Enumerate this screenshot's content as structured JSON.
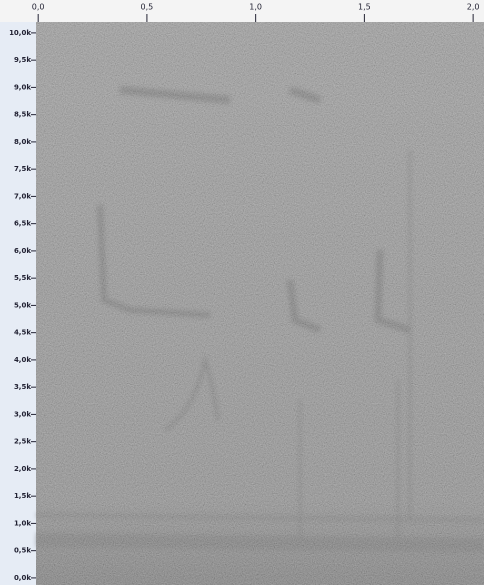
{
  "chart_data": {
    "type": "spectrogram",
    "xlim": [
      -0.01,
      2.05
    ],
    "xticks": [
      {
        "value": 0,
        "label": "0,0"
      },
      {
        "value": 0.5,
        "label": "0,5"
      },
      {
        "value": 1,
        "label": "1,0"
      },
      {
        "value": 1.5,
        "label": "1,5"
      },
      {
        "value": 2,
        "label": "2,0"
      }
    ],
    "ylim": [
      -0.13,
      10.2
    ],
    "yticks": [
      {
        "value": 0,
        "label": "0,0k"
      },
      {
        "value": 0.5,
        "label": "0,5k"
      },
      {
        "value": 1,
        "label": "1,0k"
      },
      {
        "value": 1.5,
        "label": "1,5k"
      },
      {
        "value": 2,
        "label": "2,0k"
      },
      {
        "value": 2.5,
        "label": "2,5k"
      },
      {
        "value": 3,
        "label": "3,0k"
      },
      {
        "value": 3.5,
        "label": "3,5k"
      },
      {
        "value": 4,
        "label": "4,0k"
      },
      {
        "value": 4.5,
        "label": "4,5k"
      },
      {
        "value": 5,
        "label": "5,0k"
      },
      {
        "value": 5.5,
        "label": "5,5k"
      },
      {
        "value": 6,
        "label": "6,0k"
      },
      {
        "value": 6.5,
        "label": "6,5k"
      },
      {
        "value": 7,
        "label": "7,0k"
      },
      {
        "value": 7.5,
        "label": "7,5k"
      },
      {
        "value": 8,
        "label": "8,0k"
      },
      {
        "value": 8.5,
        "label": "8,5k"
      },
      {
        "value": 9,
        "label": "9,0k"
      },
      {
        "value": 9.5,
        "label": "9,5k"
      },
      {
        "value": 10,
        "label": "10,0k"
      }
    ]
  }
}
